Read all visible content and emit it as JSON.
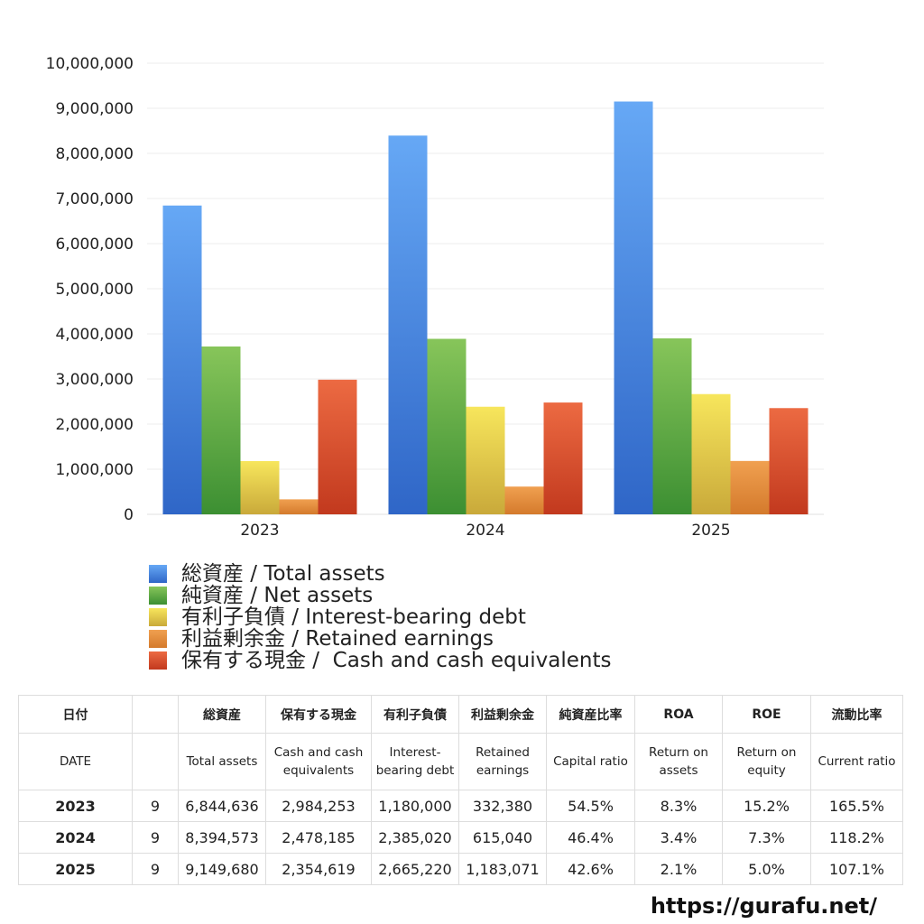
{
  "chart_data": {
    "type": "bar",
    "categories": [
      "2023",
      "2024",
      "2025"
    ],
    "ylim": [
      0,
      10000000
    ],
    "yticks": [
      "0",
      "1,000,000",
      "2,000,000",
      "3,000,000",
      "4,000,000",
      "5,000,000",
      "6,000,000",
      "7,000,000",
      "8,000,000",
      "9,000,000",
      "10,000,000"
    ],
    "grid": true,
    "legend_position": "bottom",
    "series": [
      {
        "name": "総資産 / Total assets",
        "values": [
          6844636,
          8394573,
          9149680
        ],
        "color_top": "#66a8f5",
        "color_bottom": "#2f66c7"
      },
      {
        "name": "純資産 / Net assets",
        "values": [
          3720000,
          3890000,
          3900000
        ],
        "color_top": "#87c55a",
        "color_bottom": "#3c8f32"
      },
      {
        "name": "有利子負債 / Interest-bearing debt",
        "values": [
          1180000,
          2385020,
          2665220
        ],
        "color_top": "#f7e65c",
        "color_bottom": "#c9a93a"
      },
      {
        "name": "利益剰余金 / Retained earnings",
        "values": [
          332380,
          615040,
          1183071
        ],
        "color_top": "#f0a050",
        "color_bottom": "#d47a2c"
      },
      {
        "name": "保有する現金 /  Cash and cash equivalents",
        "values": [
          2984253,
          2478185,
          2354619
        ],
        "color_top": "#ec6a42",
        "color_bottom": "#c2391e"
      }
    ]
  },
  "table": {
    "headers_jp": [
      "日付",
      "",
      "総資産",
      "保有する現金",
      "有利子負債",
      "利益剰余金",
      "純資産比率",
      "ROA",
      "ROE",
      "流動比率"
    ],
    "headers_en": [
      "DATE",
      "",
      "Total assets",
      "Cash and cash equivalents",
      "Interest-bearing debt",
      "Retained earnings",
      "Capital ratio",
      "Return on assets",
      "Return on equity",
      "Current ratio"
    ],
    "rows": [
      [
        "2023",
        "9",
        "6,844,636",
        "2,984,253",
        "1,180,000",
        "332,380",
        "54.5%",
        "8.3%",
        "15.2%",
        "165.5%"
      ],
      [
        "2024",
        "9",
        "8,394,573",
        "2,478,185",
        "2,385,020",
        "615,040",
        "46.4%",
        "3.4%",
        "7.3%",
        "118.2%"
      ],
      [
        "2025",
        "9",
        "9,149,680",
        "2,354,619",
        "2,665,220",
        "1,183,071",
        "42.6%",
        "2.1%",
        "5.0%",
        "107.1%"
      ]
    ]
  },
  "site_url": "https://gurafu.net/"
}
